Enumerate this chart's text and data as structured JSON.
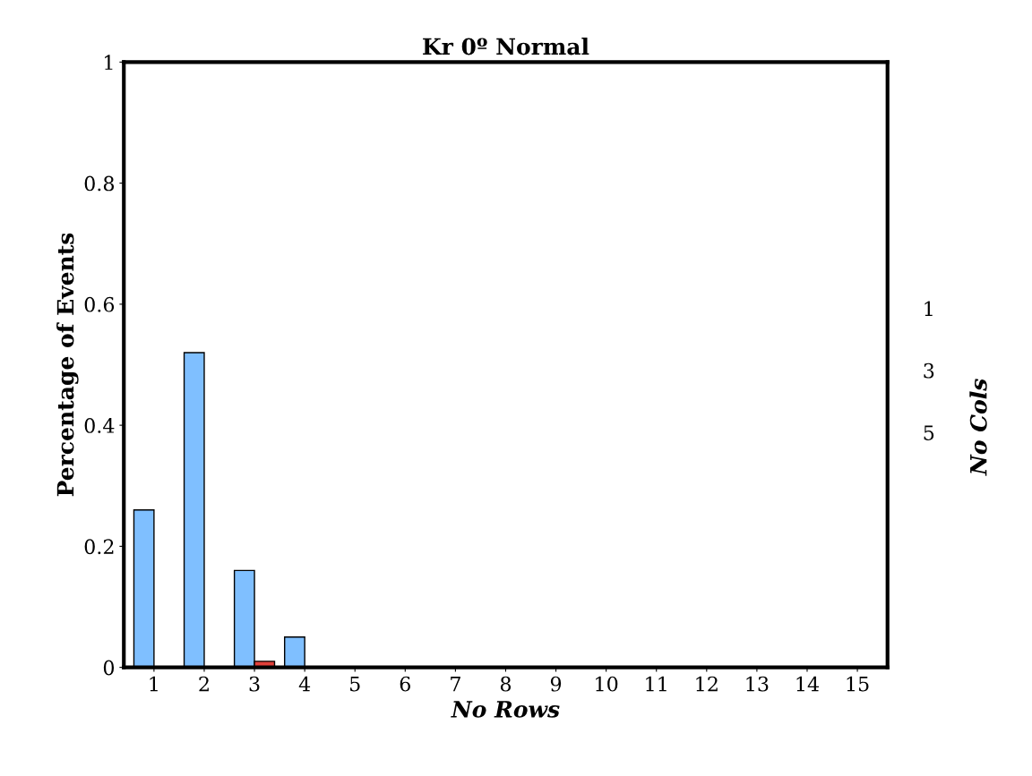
{
  "chart_data": {
    "type": "bar",
    "title": "Kr 0º Normal",
    "xlabel": "No Rows",
    "ylabel": "Percentage of Events",
    "categories": [
      "1",
      "2",
      "3",
      "4",
      "5",
      "6",
      "7",
      "8",
      "9",
      "10",
      "11",
      "12",
      "13",
      "14",
      "15"
    ],
    "series": [
      {
        "color": "#7fbfff",
        "values": [
          0.26,
          0.52,
          0.16,
          0.05,
          null,
          null,
          null,
          null,
          null,
          null,
          null,
          null,
          null,
          null,
          null
        ]
      },
      {
        "color": "#e0403a",
        "values": [
          null,
          null,
          0.01,
          null,
          null,
          null,
          null,
          null,
          null,
          null,
          null,
          null,
          null,
          null,
          null
        ]
      }
    ],
    "ylim": [
      0,
      1
    ],
    "yticks": [
      0,
      0.2,
      0.4,
      0.6,
      0.8,
      1
    ],
    "grid": false,
    "legend": false,
    "annotations": [
      "No Cols",
      "1",
      "3",
      "5"
    ]
  }
}
